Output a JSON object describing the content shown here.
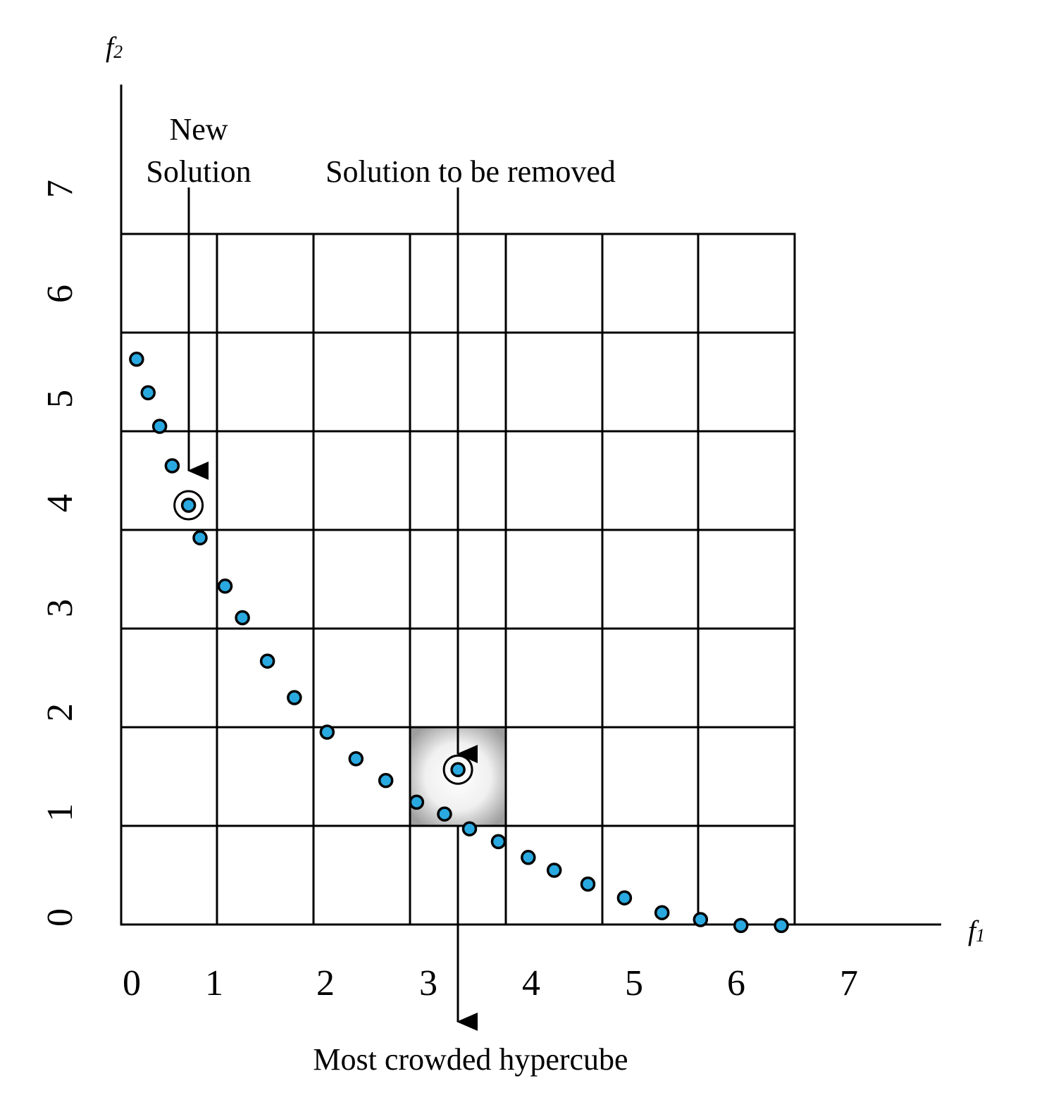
{
  "axes": {
    "x_name": "f",
    "x_subscript": "1",
    "y_name": "f",
    "y_subscript": "2",
    "x_ticks": [
      "0",
      "1",
      "2",
      "3",
      "4",
      "5",
      "6",
      "7"
    ],
    "y_ticks": [
      "0",
      "1",
      "2",
      "3",
      "4",
      "5",
      "6",
      "7"
    ]
  },
  "annotations": {
    "new_solution_line1": "New",
    "new_solution_line2": "Solution",
    "solution_removed": "Solution to be removed",
    "crowded_hypercube": "Most crowded hypercube"
  },
  "grid": {
    "columns": 7,
    "rows": 7
  },
  "colors": {
    "point_fill": "#29a9e0",
    "point_stroke": "#000000",
    "line": "#000000",
    "crowded_cell_shade": "#bdbdbd"
  },
  "highlighted_cell": {
    "col": 3,
    "row": 1
  },
  "points": [
    [
      0.16,
      5.73
    ],
    [
      0.28,
      5.39
    ],
    [
      0.4,
      5.05
    ],
    [
      0.53,
      4.65
    ],
    [
      0.7,
      4.25
    ],
    [
      0.82,
      3.92
    ],
    [
      1.08,
      3.43
    ],
    [
      1.26,
      3.11
    ],
    [
      1.52,
      2.67
    ],
    [
      1.8,
      2.3
    ],
    [
      2.14,
      1.95
    ],
    [
      2.44,
      1.68
    ],
    [
      2.75,
      1.46
    ],
    [
      3.07,
      1.24
    ],
    [
      3.36,
      1.12
    ],
    [
      3.5,
      1.57
    ],
    [
      3.62,
      0.97
    ],
    [
      3.92,
      0.84
    ],
    [
      4.23,
      0.68
    ],
    [
      4.5,
      0.55
    ],
    [
      4.85,
      0.41
    ],
    [
      5.23,
      0.27
    ],
    [
      5.62,
      0.12
    ],
    [
      6.02,
      0.05
    ],
    [
      6.44,
      -0.01
    ],
    [
      6.86,
      -0.01
    ]
  ],
  "new_solution_index": 4,
  "removed_solution_index": 15
}
